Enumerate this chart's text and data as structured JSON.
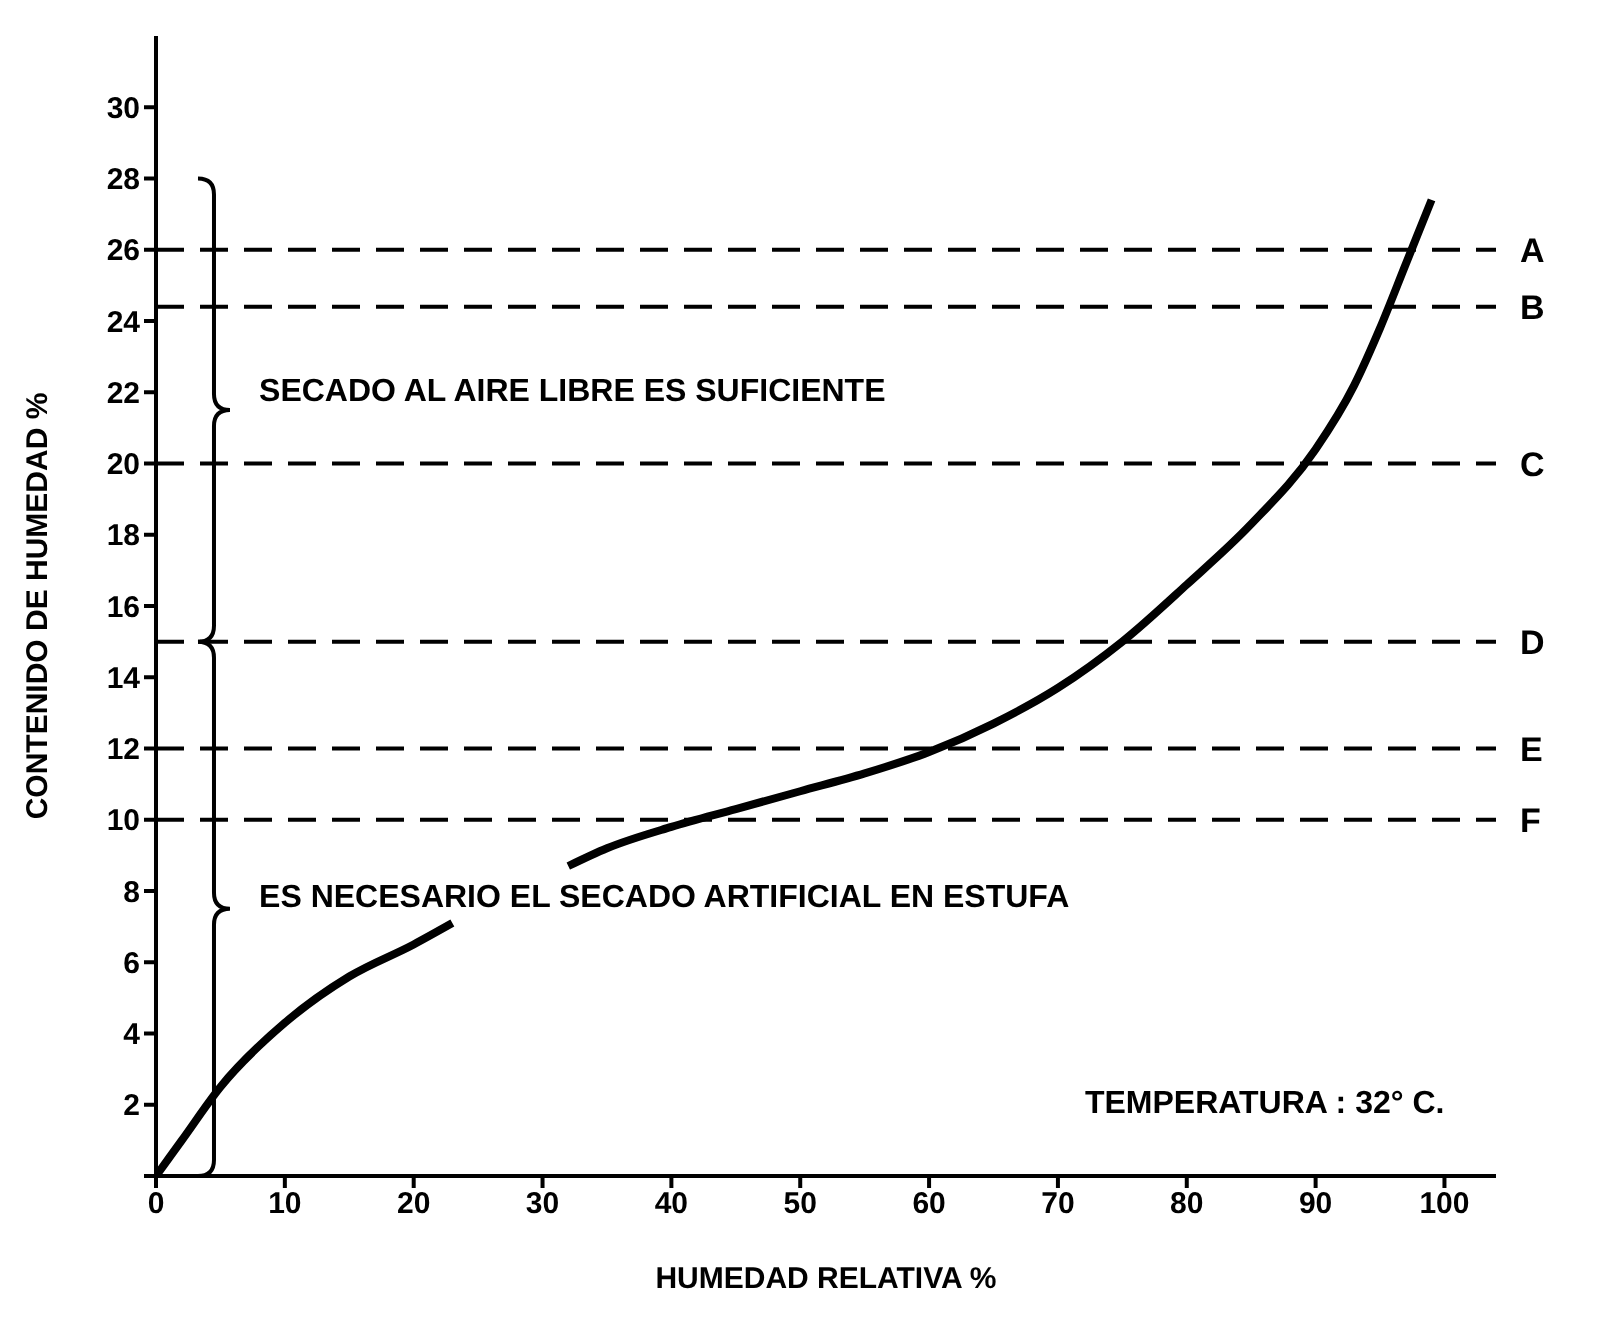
{
  "chart_data": {
    "type": "line",
    "xlabel": "HUMEDAD RELATIVA   %",
    "ylabel": "CONTENIDO DE HUMEDAD   %",
    "xlim": [
      0,
      104
    ],
    "xticks": [
      0,
      10,
      20,
      30,
      40,
      50,
      60,
      70,
      80,
      90,
      100
    ],
    "ylim": [
      0,
      32
    ],
    "yticks": [
      {
        "value": 0,
        "label": null
      },
      2,
      4,
      6,
      8,
      10,
      12,
      14,
      16,
      18,
      20,
      22,
      24,
      26,
      28,
      30
    ],
    "marker": "none",
    "line_style": "solid",
    "series": [
      {
        "color": "#000000",
        "x": [
          0,
          2,
          5,
          10,
          15,
          20,
          23,
          27,
          32,
          35,
          40,
          45,
          50,
          55,
          60,
          65,
          70,
          75,
          80,
          85,
          90,
          93,
          95,
          97,
          99
        ],
        "values": [
          0,
          1,
          2.5,
          4.3,
          5.6,
          6.5,
          7.1,
          null,
          8.7,
          9.2,
          9.8,
          10.3,
          10.8,
          11.3,
          11.9,
          12.7,
          13.7,
          15,
          16.6,
          18.3,
          20.4,
          22.2,
          23.8,
          25.6,
          27.4
        ]
      }
    ],
    "ref_lines": [
      {
        "axis": "y",
        "value": 26,
        "label": "A",
        "color": "#000000",
        "line_style": "dashed"
      },
      {
        "axis": "y",
        "value": 24.4,
        "label": "B",
        "color": "#000000",
        "line_style": "dashed"
      },
      {
        "axis": "y",
        "value": 20,
        "label": "C",
        "color": "#000000",
        "line_style": "dashed"
      },
      {
        "axis": "y",
        "value": 15,
        "label": "D",
        "color": "#000000",
        "line_style": "dashed"
      },
      {
        "axis": "y",
        "value": 12,
        "label": "E",
        "color": "#000000",
        "line_style": "dashed"
      },
      {
        "axis": "y",
        "value": 10,
        "label": "F",
        "color": "#000000",
        "line_style": "dashed"
      }
    ],
    "annotations": [
      "SECADO AL AIRE LIBRE ES SUFICIENTE",
      "ES NECESARIO EL SECADO ARTIFICIAL EN ESTUFA",
      "TEMPERATURA : 32° C."
    ]
  }
}
